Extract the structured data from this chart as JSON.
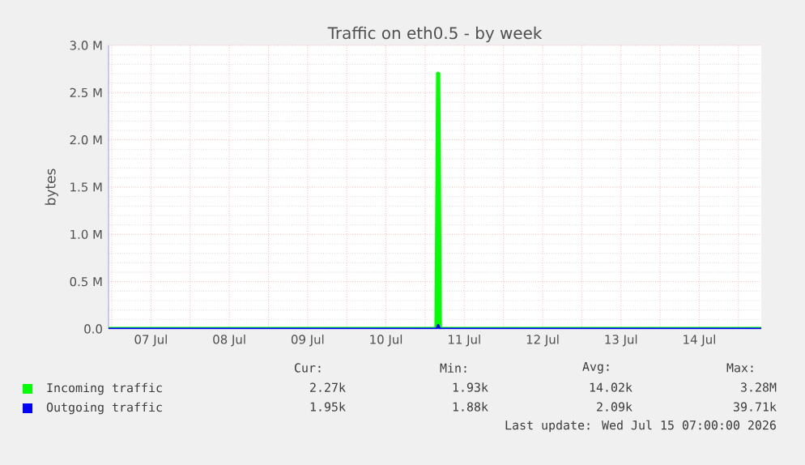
{
  "chart_data": {
    "type": "line",
    "title": "Traffic on eth0.5 - by week",
    "ylabel": "bytes",
    "xlim": [
      "2026-07-06T23:00",
      "2026-07-15T07:00"
    ],
    "xticks": [
      {
        "value": "2026-07-07T00:00",
        "label": null
      },
      {
        "value": "2026-07-07T12:00",
        "label": "07 Jul"
      },
      {
        "value": "2026-07-08T00:00",
        "label": null
      },
      {
        "value": "2026-07-08T12:00",
        "label": "08 Jul"
      },
      {
        "value": "2026-07-09T00:00",
        "label": null
      },
      {
        "value": "2026-07-09T12:00",
        "label": "09 Jul"
      },
      {
        "value": "2026-07-10T00:00",
        "label": null
      },
      {
        "value": "2026-07-10T12:00",
        "label": "10 Jul"
      },
      {
        "value": "2026-07-11T00:00",
        "label": null
      },
      {
        "value": "2026-07-11T12:00",
        "label": "11 Jul"
      },
      {
        "value": "2026-07-12T00:00",
        "label": null
      },
      {
        "value": "2026-07-12T12:00",
        "label": "12 Jul"
      },
      {
        "value": "2026-07-13T00:00",
        "label": null
      },
      {
        "value": "2026-07-13T12:00",
        "label": "13 Jul"
      },
      {
        "value": "2026-07-14T00:00",
        "label": null
      },
      {
        "value": "2026-07-14T12:00",
        "label": "14 Jul"
      },
      {
        "value": "2026-07-15T00:00",
        "label": null
      }
    ],
    "ylim": [
      0,
      3000000
    ],
    "yticks": [
      {
        "value": 0,
        "label": "0.0"
      },
      {
        "value": 500000,
        "label": "0.5 M"
      },
      {
        "value": 1000000,
        "label": "1.0 M"
      },
      {
        "value": 1500000,
        "label": "1.5 M"
      },
      {
        "value": 2000000,
        "label": "2.0 M"
      },
      {
        "value": 2500000,
        "label": "2.5 M"
      },
      {
        "value": 3000000,
        "label": "3.0 M"
      }
    ],
    "grid": true,
    "legend": "bottom",
    "marker": "none",
    "line_style": "solid",
    "series": [
      {
        "name": "Incoming traffic",
        "color": "#00ff00",
        "x": [
          "2026-07-06T23:00",
          "2026-07-11T03:30",
          "2026-07-11T04:00",
          "2026-07-11T04:30",
          "2026-07-15T07:00"
        ],
        "values": [
          0,
          0,
          2700000,
          0,
          0
        ]
      },
      {
        "name": "Outgoing traffic",
        "color": "#0000ff",
        "x": [
          "2026-07-06T23:00",
          "2026-07-11T03:30",
          "2026-07-11T04:00",
          "2026-07-11T04:30",
          "2026-07-15T07:00"
        ],
        "values": [
          0,
          0,
          40000,
          0,
          0
        ]
      }
    ],
    "annotations": [
      "Cur:",
      "Min:",
      "Avg:",
      "Max:",
      "2.27k",
      "1.93k",
      "14.02k",
      "3.28M",
      "1.95k",
      "1.88k",
      "2.09k",
      "39.71k",
      "Last update: Wed Jul 15 07:00:00 2026"
    ]
  }
}
